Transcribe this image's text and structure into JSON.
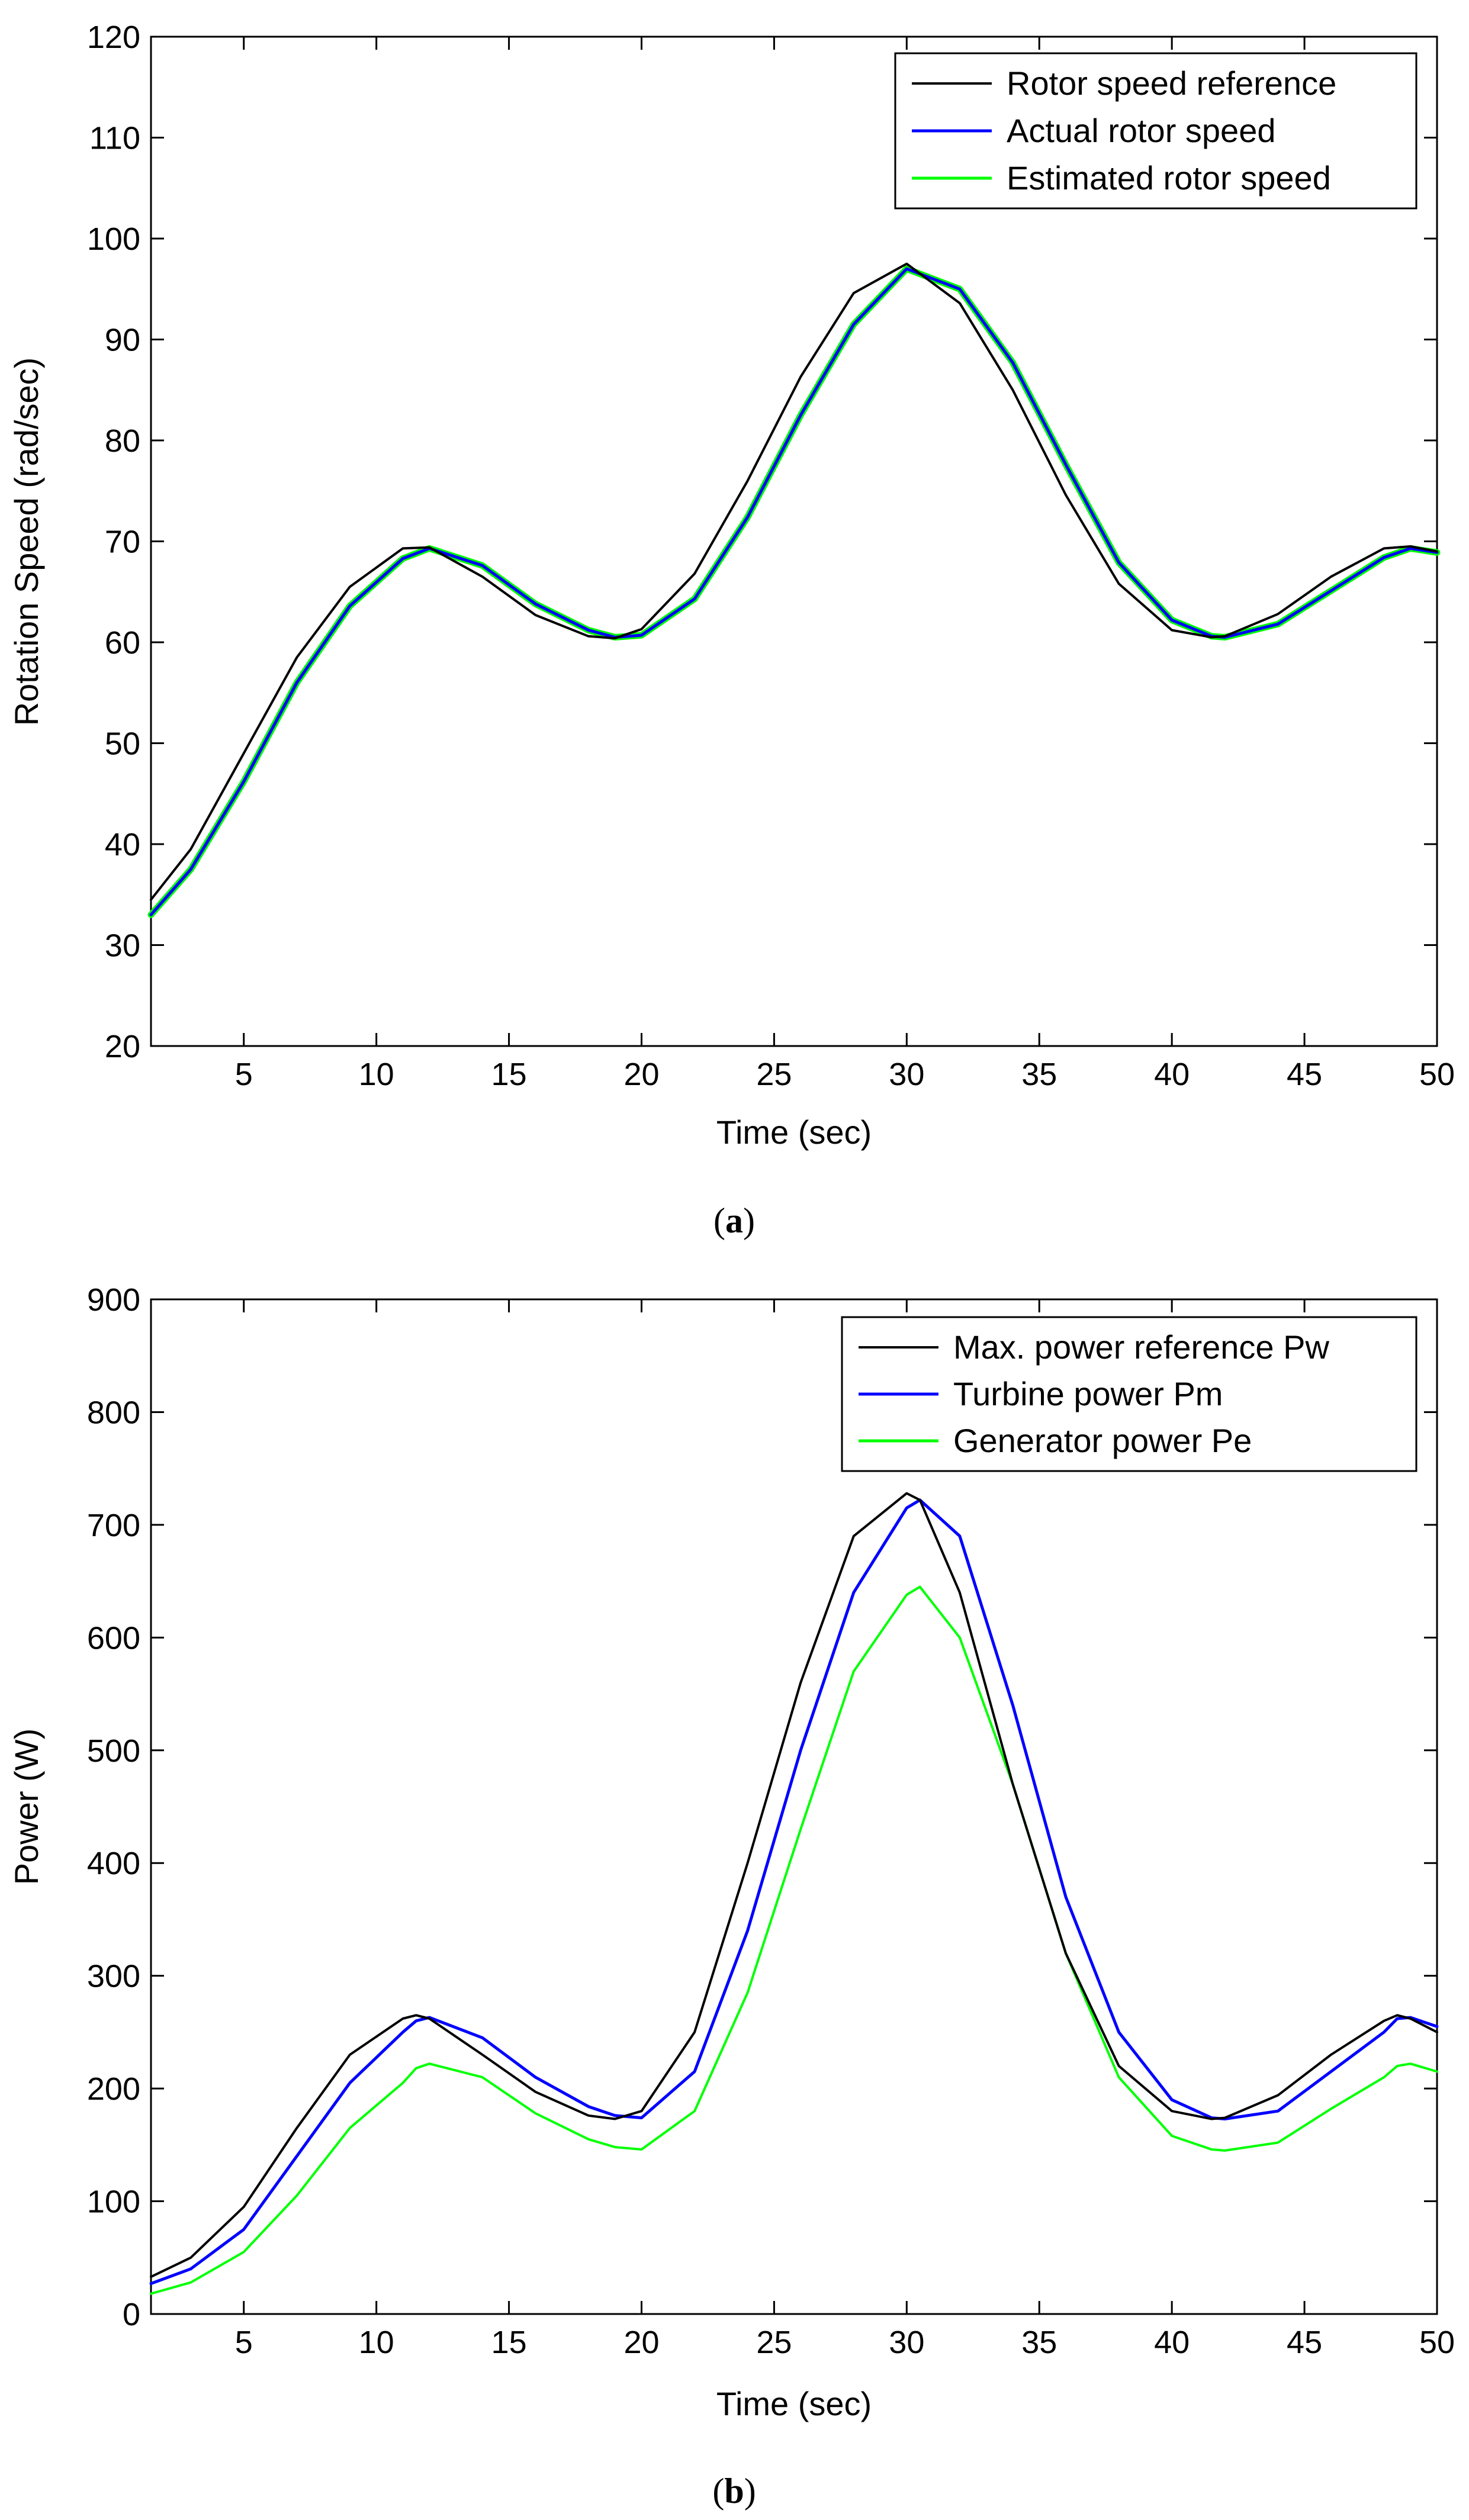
{
  "chart_data": [
    {
      "type": "line",
      "panel": "a",
      "caption_letter": "a",
      "xlabel": "Time (sec)",
      "ylabel": "Rotation Speed (rad/sec)",
      "xlim": [
        1.5,
        50
      ],
      "ylim": [
        20,
        120
      ],
      "xticks": [
        5,
        10,
        15,
        20,
        25,
        30,
        35,
        40,
        45,
        50
      ],
      "yticks": [
        20,
        30,
        40,
        50,
        60,
        70,
        80,
        90,
        100,
        110,
        120
      ],
      "legend_position": "top-right",
      "x": [
        1.5,
        3,
        5,
        7,
        9,
        11,
        12,
        14,
        16,
        18,
        19,
        20,
        22,
        24,
        26,
        28,
        30,
        32,
        34,
        36,
        38,
        40,
        41.5,
        42,
        44,
        46,
        48,
        49,
        50
      ],
      "series": [
        {
          "name": "Rotor speed reference",
          "color": "#000000",
          "width": 4,
          "values": [
            34.5,
            39.5,
            49,
            58.5,
            65.5,
            69.3,
            69.4,
            66.5,
            62.7,
            60.6,
            60.4,
            61.3,
            66.8,
            76,
            86.3,
            94.6,
            97.5,
            93.6,
            85,
            74.6,
            65.8,
            61.2,
            60.5,
            60.6,
            62.8,
            66.5,
            69.3,
            69.5,
            69
          ]
        },
        {
          "name": "Actual rotor speed",
          "color": "#0000ff",
          "width": 5,
          "values": [
            33,
            37.5,
            46.2,
            56,
            63.6,
            68.3,
            69.3,
            67.6,
            63.8,
            61.2,
            60.5,
            60.7,
            64.3,
            72.4,
            82.5,
            91.5,
            97,
            95,
            87.7,
            77.6,
            67.9,
            62.2,
            60.6,
            60.5,
            61.8,
            65.1,
            68.4,
            69.3,
            68.9
          ]
        },
        {
          "name": "Estimated rotor speed",
          "color": "#00ff00",
          "width": 11,
          "values": [
            33,
            37.5,
            46.2,
            56,
            63.6,
            68.3,
            69.3,
            67.6,
            63.8,
            61.2,
            60.5,
            60.7,
            64.3,
            72.4,
            82.5,
            91.5,
            97,
            95,
            87.7,
            77.6,
            67.9,
            62.2,
            60.6,
            60.5,
            61.8,
            65.1,
            68.4,
            69.3,
            68.9
          ]
        }
      ]
    },
    {
      "type": "line",
      "panel": "b",
      "caption_letter": "b",
      "xlabel": "Time (sec)",
      "ylabel": "Power (W)",
      "xlim": [
        1.5,
        50
      ],
      "ylim": [
        0,
        900
      ],
      "xticks": [
        5,
        10,
        15,
        20,
        25,
        30,
        35,
        40,
        45,
        50
      ],
      "yticks": [
        0,
        100,
        200,
        300,
        400,
        500,
        600,
        700,
        800,
        900
      ],
      "legend_position": "top-right",
      "x": [
        1.5,
        3,
        5,
        7,
        9,
        11,
        11.5,
        12,
        14,
        16,
        18,
        19,
        20,
        22,
        24,
        26,
        28,
        30,
        30.5,
        32,
        34,
        36,
        38,
        40,
        41.5,
        42,
        44,
        46,
        48,
        48.5,
        49,
        50
      ],
      "series": [
        {
          "name": "Max. power reference Pw",
          "color": "#000000",
          "width": 4,
          "values": [
            33,
            50,
            95,
            165,
            230,
            262,
            265,
            262,
            230,
            197,
            176,
            173,
            180,
            250,
            400,
            560,
            690,
            728,
            722,
            640,
            470,
            320,
            220,
            180,
            173,
            174,
            194,
            230,
            260,
            265,
            262,
            250
          ]
        },
        {
          "name": "Turbine power Pm",
          "color": "#0000ff",
          "width": 5,
          "values": [
            27,
            40,
            75,
            140,
            205,
            250,
            260,
            263,
            245,
            210,
            184,
            176,
            174,
            215,
            340,
            500,
            640,
            715,
            722,
            690,
            540,
            370,
            250,
            190,
            174,
            173,
            180,
            215,
            250,
            262,
            263,
            255
          ]
        },
        {
          "name": "Generator power Pe",
          "color": "#00ff00",
          "width": 4,
          "values": [
            18,
            28,
            55,
            105,
            165,
            205,
            218,
            222,
            210,
            178,
            155,
            148,
            146,
            180,
            285,
            430,
            570,
            638,
            645,
            600,
            470,
            320,
            210,
            158,
            146,
            145,
            152,
            182,
            210,
            220,
            222,
            215
          ]
        }
      ]
    }
  ]
}
